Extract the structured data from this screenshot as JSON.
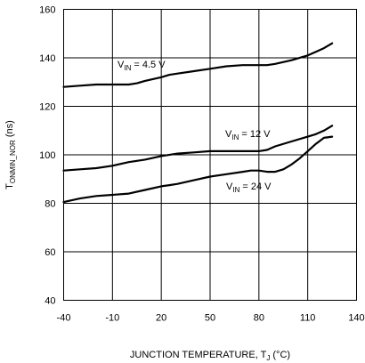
{
  "chart_data": {
    "type": "line",
    "xlabel": {
      "main": "JUNCTION TEMPERATURE, T",
      "sub": "J",
      "unit": " (°C)"
    },
    "ylabel": {
      "main": "T",
      "sub": "ONMIN_NOR",
      "unit": " (ns)"
    },
    "xlim": [
      -40,
      140
    ],
    "ylim": [
      40,
      160
    ],
    "x_ticks": [
      -40,
      -10,
      20,
      50,
      80,
      110,
      140
    ],
    "y_ticks": [
      40,
      60,
      80,
      100,
      120,
      140,
      160
    ],
    "grid": true,
    "series": [
      {
        "name": {
          "main": "V",
          "sub": "IN",
          "rest": " = 4.5 V"
        },
        "points": [
          [
            -40,
            128
          ],
          [
            -30,
            128.5
          ],
          [
            -20,
            129
          ],
          [
            -10,
            129
          ],
          [
            0,
            129
          ],
          [
            5,
            129.5
          ],
          [
            10,
            130.5
          ],
          [
            20,
            132
          ],
          [
            25,
            133
          ],
          [
            30,
            133.5
          ],
          [
            40,
            134.5
          ],
          [
            50,
            135.5
          ],
          [
            60,
            136.5
          ],
          [
            70,
            137
          ],
          [
            80,
            137
          ],
          [
            85,
            137
          ],
          [
            90,
            137.5
          ],
          [
            100,
            139
          ],
          [
            110,
            141
          ],
          [
            115,
            142.5
          ],
          [
            120,
            144
          ],
          [
            125,
            146
          ]
        ]
      },
      {
        "name": {
          "main": "V",
          "sub": "IN",
          "rest": " = 12 V"
        },
        "points": [
          [
            -40,
            93.5
          ],
          [
            -30,
            94
          ],
          [
            -20,
            94.5
          ],
          [
            -10,
            95.5
          ],
          [
            0,
            97
          ],
          [
            10,
            98
          ],
          [
            20,
            99.5
          ],
          [
            30,
            100.5
          ],
          [
            40,
            101
          ],
          [
            50,
            101.5
          ],
          [
            60,
            101.5
          ],
          [
            70,
            101.5
          ],
          [
            80,
            101.5
          ],
          [
            85,
            102
          ],
          [
            90,
            103.5
          ],
          [
            100,
            105.5
          ],
          [
            110,
            107.5
          ],
          [
            115,
            108.5
          ],
          [
            120,
            110
          ],
          [
            125,
            112
          ]
        ]
      },
      {
        "name": {
          "main": "V",
          "sub": "IN",
          "rest": " = 24 V"
        },
        "points": [
          [
            -40,
            80.5
          ],
          [
            -30,
            82
          ],
          [
            -20,
            83
          ],
          [
            -10,
            83.5
          ],
          [
            0,
            84
          ],
          [
            10,
            85.5
          ],
          [
            20,
            87
          ],
          [
            25,
            87.5
          ],
          [
            30,
            88
          ],
          [
            40,
            89.5
          ],
          [
            50,
            91
          ],
          [
            60,
            92
          ],
          [
            70,
            93
          ],
          [
            75,
            93.5
          ],
          [
            80,
            93.5
          ],
          [
            85,
            93
          ],
          [
            90,
            93
          ],
          [
            95,
            94
          ],
          [
            100,
            96
          ],
          [
            105,
            98.5
          ],
          [
            110,
            101.5
          ],
          [
            115,
            104.5
          ],
          [
            120,
            107
          ],
          [
            125,
            107.5
          ]
        ]
      }
    ]
  }
}
